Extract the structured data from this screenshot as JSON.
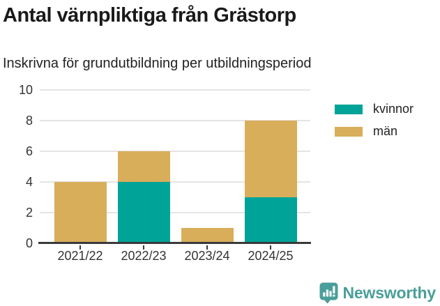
{
  "title": "Antal värnpliktiga från Grästorp",
  "subtitle": "Inskrivna för grundutbildning per utbildningsperiod",
  "chart_data": {
    "type": "bar",
    "stacked": true,
    "title": "Antal värnpliktiga från Grästorp",
    "subtitle": "Inskrivna för grundutbildning per utbildningsperiod",
    "categories": [
      "2021/22",
      "2022/23",
      "2023/24",
      "2024/25"
    ],
    "series": [
      {
        "name": "kvinnor",
        "color": "#00a398",
        "values": [
          0,
          4,
          0,
          3
        ]
      },
      {
        "name": "män",
        "color": "#d9ae5a",
        "values": [
          4,
          2,
          1,
          5
        ]
      }
    ],
    "totals": [
      4,
      6,
      1,
      8
    ],
    "xlabel": "",
    "ylabel": "",
    "ylim": [
      0,
      10
    ],
    "yticks": [
      0,
      2,
      4,
      6,
      8,
      10
    ],
    "grid": true,
    "legend_position": "top-right"
  },
  "legend": {
    "items": [
      {
        "label": "kvinnor",
        "color": "#00a398"
      },
      {
        "label": "män",
        "color": "#d9ae5a"
      }
    ]
  },
  "footer": {
    "brand": "Newsworthy",
    "brand_color": "#4a9e99"
  }
}
